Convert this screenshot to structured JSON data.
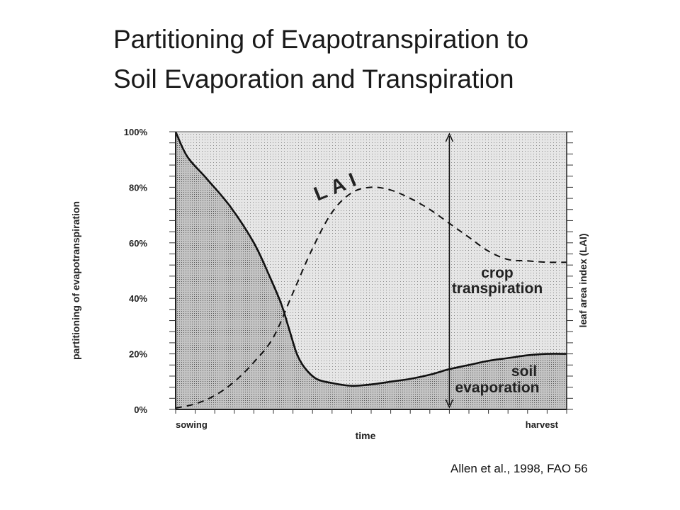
{
  "title": {
    "line1": "Partitioning of Evapotranspiration to",
    "line2": "Soil Evaporation and Transpiration"
  },
  "citation": "Allen et al., 1998, FAO 56",
  "chart_data": {
    "type": "area",
    "ylabel": "partitioning of evapotranspiration",
    "ylabel_right": "leaf area index (LAI)",
    "xlabel": "time",
    "x_tick_labels": {
      "start": "sowing",
      "end": "harvest"
    },
    "y_ticks": [
      "0%",
      "20%",
      "40%",
      "60%",
      "80%",
      "100%"
    ],
    "ylim": [
      0,
      100
    ],
    "xlim": [
      0,
      100
    ],
    "grid": false,
    "series": [
      {
        "name": "soil evaporation",
        "style": "solid",
        "x": [
          0,
          3,
          8,
          14,
          20,
          24,
          27,
          29,
          31,
          33,
          36,
          40,
          45,
          50,
          55,
          60,
          65,
          70,
          75,
          80,
          85,
          90,
          95,
          100
        ],
        "values": [
          100,
          91,
          83,
          73,
          60,
          48,
          38,
          29,
          20,
          15,
          11,
          9.5,
          8.5,
          9,
          10,
          11,
          12.5,
          14.5,
          16,
          17.5,
          18.5,
          19.5,
          20,
          20
        ]
      },
      {
        "name": "LAI",
        "style": "dashed",
        "x": [
          0,
          5,
          10,
          15,
          20,
          25,
          30,
          35,
          40,
          45,
          50,
          55,
          60,
          65,
          70,
          75,
          80,
          85,
          90,
          95,
          100
        ],
        "values": [
          0.5,
          2,
          5,
          10,
          17,
          26,
          42,
          58,
          71,
          78,
          80,
          79,
          76,
          72,
          67,
          62,
          57,
          54,
          53.5,
          53,
          53
        ]
      }
    ],
    "region_labels": [
      {
        "line1": "crop",
        "line2": "transpiration"
      },
      {
        "line1": "soil",
        "line2": "evaporation"
      }
    ],
    "curve_label": "LAI",
    "colors": {
      "upper_fill": "#e3e3e3",
      "lower_fill": "#b9b9b9",
      "line": "#111111"
    }
  }
}
